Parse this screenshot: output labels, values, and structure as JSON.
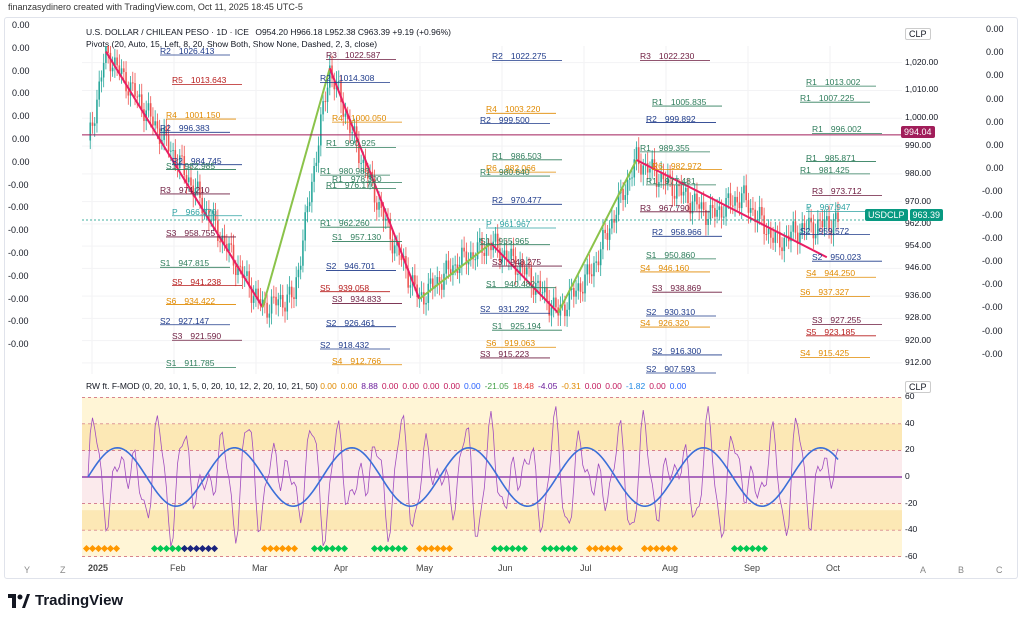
{
  "header": "finanzasydinero created with TradingView.com, Oct 11, 2025 18:45 UTC-5",
  "main": {
    "title": "U.S. DOLLAR / CHILEAN PESO · 1D · ICE",
    "ohlc": "O954.20 H966.18 L952.38 C963.39 +9.19 (+0.96%)",
    "currency": "CLP",
    "indicator": "Pivots (20, Auto, 15, Left, 8, 20, Show Both, Show None, Dashed, 2, 3, close)",
    "symbol_badge": "USDCLP",
    "last_price": "963.39",
    "marker_price": "994.04",
    "y_ticks": [
      "1,020.00",
      "1,010.00",
      "1,000.00",
      "990.00",
      "980.00",
      "970.00",
      "962.00",
      "954.00",
      "946.00",
      "936.00",
      "928.00",
      "920.00",
      "912.00"
    ],
    "colors": {
      "up": "#26a69a",
      "down": "#ef5350",
      "trend": "#e91e63",
      "up_trend": "#8bc34a",
      "badge": "#089981",
      "marker": "#a11e5a"
    }
  },
  "left_panel_values": [
    "0.00",
    "0.00",
    "0.00",
    "0.00",
    "0.00",
    "0.00",
    "0.00",
    "-0.00",
    "-0.00",
    "-0.00",
    "-0.00",
    "-0.00",
    "-0.00",
    "-0.00",
    "-0.00"
  ],
  "right_panel_values": [
    "0.00",
    "0.00",
    "0.00",
    "0.00",
    "0.00",
    "0.00",
    "0.00",
    "-0.00",
    "-0.00",
    "-0.00",
    "-0.00",
    "-0.00",
    "-0.00",
    "-0.00",
    "-0.00"
  ],
  "pivot_labels": [
    {
      "t": "R2",
      "c": "#1e3a8a"
    },
    {
      "t": "1026.413",
      "c": "#1e3a8a"
    },
    {
      "t": "R3",
      "c": "#6d1b3f"
    },
    {
      "t": "1022.587",
      "c": "#6d1b3f"
    },
    {
      "t": "R2",
      "c": "#1e3a8a"
    },
    {
      "t": "1022.275",
      "c": "#1e3a8a"
    },
    {
      "t": "R3",
      "c": "#6d1b3f"
    },
    {
      "t": "1022.230",
      "c": "#6d1b3f"
    },
    {
      "t": "R1",
      "c": "#2e7d5b"
    },
    {
      "t": "1013.002",
      "c": "#2e7d5b"
    },
    {
      "t": "R5",
      "c": "#b71c1c"
    },
    {
      "t": "1013.643",
      "c": "#b71c1c"
    },
    {
      "t": "R2",
      "c": "#1e3a8a"
    },
    {
      "t": "1014.308",
      "c": "#1e3a8a"
    },
    {
      "t": "R4",
      "c": "#e08a00"
    },
    {
      "t": "1003.220",
      "c": "#e08a00"
    },
    {
      "t": "R1",
      "c": "#2e7d5b"
    },
    {
      "t": "1005.835",
      "c": "#2e7d5b"
    },
    {
      "t": "R1",
      "c": "#2e7d5b"
    },
    {
      "t": "1007.225",
      "c": "#2e7d5b"
    },
    {
      "t": "R4",
      "c": "#e08a00"
    },
    {
      "t": "1001.150",
      "c": "#e08a00"
    },
    {
      "t": "R4",
      "c": "#e08a00"
    },
    {
      "t": "1000.050",
      "c": "#e08a00"
    },
    {
      "t": "R2",
      "c": "#1e3a8a"
    },
    {
      "t": "999.500",
      "c": "#1e3a8a"
    },
    {
      "t": "R2",
      "c": "#1e3a8a"
    },
    {
      "t": "999.892",
      "c": "#1e3a8a"
    },
    {
      "t": "R1",
      "c": "#2e7d5b"
    },
    {
      "t": "996.002",
      "c": "#2e7d5b"
    },
    {
      "t": "R2",
      "c": "#1e3a8a"
    },
    {
      "t": "996.383",
      "c": "#1e3a8a"
    },
    {
      "t": "R1",
      "c": "#2e7d5b"
    },
    {
      "t": "990.925",
      "c": "#2e7d5b"
    },
    {
      "t": "R1",
      "c": "#2e7d5b"
    },
    {
      "t": "986.503",
      "c": "#2e7d5b"
    },
    {
      "t": "R1",
      "c": "#2e7d5b"
    },
    {
      "t": "989.355",
      "c": "#2e7d5b"
    },
    {
      "t": "R1",
      "c": "#2e7d5b"
    },
    {
      "t": "985.871",
      "c": "#2e7d5b"
    },
    {
      "t": "R2",
      "c": "#1e3a8a"
    },
    {
      "t": "984.745",
      "c": "#1e3a8a"
    },
    {
      "t": "R1",
      "c": "#2e7d5b"
    },
    {
      "t": "980.983",
      "c": "#2e7d5b"
    },
    {
      "t": "R6",
      "c": "#e08a00"
    },
    {
      "t": "982.066",
      "c": "#e08a00"
    },
    {
      "t": "R6",
      "c": "#e08a00"
    },
    {
      "t": "982.972",
      "c": "#e08a00"
    },
    {
      "t": "R1",
      "c": "#2e7d5b"
    },
    {
      "t": "981.425",
      "c": "#2e7d5b"
    },
    {
      "t": "S1",
      "c": "#2e7d5b"
    },
    {
      "t": "982.985",
      "c": "#2e7d5b"
    },
    {
      "t": "R1",
      "c": "#2e7d5b"
    },
    {
      "t": "978.300",
      "c": "#2e7d5b"
    },
    {
      "t": "R1",
      "c": "#2e7d5b"
    },
    {
      "t": "980.640",
      "c": "#2e7d5b"
    },
    {
      "t": "R1",
      "c": "#2e7d5b"
    },
    {
      "t": "977.481",
      "c": "#2e7d5b"
    },
    {
      "t": "R3",
      "c": "#6d1b3f"
    },
    {
      "t": "973.712",
      "c": "#6d1b3f"
    },
    {
      "t": "R3",
      "c": "#6d1b3f"
    },
    {
      "t": "974.210",
      "c": "#6d1b3f"
    },
    {
      "t": "R1",
      "c": "#2e7d5b"
    },
    {
      "t": "976.170",
      "c": "#2e7d5b"
    },
    {
      "t": "R2",
      "c": "#1e3a8a"
    },
    {
      "t": "970.477",
      "c": "#1e3a8a"
    },
    {
      "t": "R3",
      "c": "#6d1b3f"
    },
    {
      "t": "967.790",
      "c": "#6d1b3f"
    },
    {
      "t": "P",
      "c": "#2ea2a2"
    },
    {
      "t": "967.947",
      "c": "#2ea2a2"
    },
    {
      "t": "P",
      "c": "#2ea2a2"
    },
    {
      "t": "966.370",
      "c": "#2ea2a2"
    },
    {
      "t": "R1",
      "c": "#2e7d5b"
    },
    {
      "t": "962.260",
      "c": "#2e7d5b"
    },
    {
      "t": "P",
      "c": "#2ea2a2"
    },
    {
      "t": "961.967",
      "c": "#2ea2a2"
    },
    {
      "t": "R2",
      "c": "#1e3a8a"
    },
    {
      "t": "958.966",
      "c": "#1e3a8a"
    },
    {
      "t": "S2",
      "c": "#1e3a8a"
    },
    {
      "t": "959.572",
      "c": "#1e3a8a"
    },
    {
      "t": "S3",
      "c": "#6d1b3f"
    },
    {
      "t": "958.755",
      "c": "#6d1b3f"
    },
    {
      "t": "S1",
      "c": "#2e7d5b"
    },
    {
      "t": "957.130",
      "c": "#2e7d5b"
    },
    {
      "t": "S1",
      "c": "#2e7d5b"
    },
    {
      "t": "955.965",
      "c": "#2e7d5b"
    },
    {
      "t": "S1",
      "c": "#2e7d5b"
    },
    {
      "t": "950.860",
      "c": "#2e7d5b"
    },
    {
      "t": "S2",
      "c": "#1e3a8a"
    },
    {
      "t": "950.023",
      "c": "#1e3a8a"
    },
    {
      "t": "S1",
      "c": "#2e7d5b"
    },
    {
      "t": "947.815",
      "c": "#2e7d5b"
    },
    {
      "t": "S2",
      "c": "#1e3a8a"
    },
    {
      "t": "946.701",
      "c": "#1e3a8a"
    },
    {
      "t": "S3",
      "c": "#6d1b3f"
    },
    {
      "t": "948.275",
      "c": "#6d1b3f"
    },
    {
      "t": "S4",
      "c": "#e08a00"
    },
    {
      "t": "946.160",
      "c": "#e08a00"
    },
    {
      "t": "S4",
      "c": "#e08a00"
    },
    {
      "t": "944.250",
      "c": "#e08a00"
    },
    {
      "t": "S5",
      "c": "#b71c1c"
    },
    {
      "t": "941.238",
      "c": "#b71c1c"
    },
    {
      "t": "S5",
      "c": "#b71c1c"
    },
    {
      "t": "939.058",
      "c": "#b71c1c"
    },
    {
      "t": "S1",
      "c": "#2e7d5b"
    },
    {
      "t": "940.482",
      "c": "#2e7d5b"
    },
    {
      "t": "S3",
      "c": "#6d1b3f"
    },
    {
      "t": "938.869",
      "c": "#6d1b3f"
    },
    {
      "t": "S6",
      "c": "#e08a00"
    },
    {
      "t": "937.327",
      "c": "#e08a00"
    },
    {
      "t": "S6",
      "c": "#e08a00"
    },
    {
      "t": "934.422",
      "c": "#e08a00"
    },
    {
      "t": "S3",
      "c": "#6d1b3f"
    },
    {
      "t": "934.833",
      "c": "#6d1b3f"
    },
    {
      "t": "S2",
      "c": "#1e3a8a"
    },
    {
      "t": "931.292",
      "c": "#1e3a8a"
    },
    {
      "t": "S2",
      "c": "#1e3a8a"
    },
    {
      "t": "930.310",
      "c": "#1e3a8a"
    },
    {
      "t": "S3",
      "c": "#6d1b3f"
    },
    {
      "t": "927.255",
      "c": "#6d1b3f"
    },
    {
      "t": "S2",
      "c": "#1e3a8a"
    },
    {
      "t": "927.147",
      "c": "#1e3a8a"
    },
    {
      "t": "S2",
      "c": "#1e3a8a"
    },
    {
      "t": "926.461",
      "c": "#1e3a8a"
    },
    {
      "t": "S1",
      "c": "#2e7d5b"
    },
    {
      "t": "925.194",
      "c": "#2e7d5b"
    },
    {
      "t": "S4",
      "c": "#e08a00"
    },
    {
      "t": "926.320",
      "c": "#e08a00"
    },
    {
      "t": "S5",
      "c": "#b71c1c"
    },
    {
      "t": "923.185",
      "c": "#b71c1c"
    },
    {
      "t": "S3",
      "c": "#6d1b3f"
    },
    {
      "t": "921.590",
      "c": "#6d1b3f"
    },
    {
      "t": "S2",
      "c": "#1e3a8a"
    },
    {
      "t": "918.432",
      "c": "#1e3a8a"
    },
    {
      "t": "S6",
      "c": "#e08a00"
    },
    {
      "t": "919.063",
      "c": "#e08a00"
    },
    {
      "t": "S2",
      "c": "#1e3a8a"
    },
    {
      "t": "916.300",
      "c": "#1e3a8a"
    },
    {
      "t": "S4",
      "c": "#e08a00"
    },
    {
      "t": "915.425",
      "c": "#e08a00"
    },
    {
      "t": "S1",
      "c": "#2e7d5b"
    },
    {
      "t": "911.785",
      "c": "#2e7d5b"
    },
    {
      "t": "S4",
      "c": "#e08a00"
    },
    {
      "t": "912.766",
      "c": "#e08a00"
    },
    {
      "t": "S3",
      "c": "#6d1b3f"
    },
    {
      "t": "915.223",
      "c": "#6d1b3f"
    },
    {
      "t": "S2",
      "c": "#1e3a8a"
    },
    {
      "t": "907.593",
      "c": "#1e3a8a"
    }
  ],
  "osc": {
    "title": "RW ft. F-MOD (0, 20, 10, 1, 5, 0, 20, 10, 12, 2, 20, 10, 21, 50)",
    "values": [
      {
        "t": "0.00",
        "c": "#e08a00"
      },
      {
        "t": "0.00",
        "c": "#e08a00"
      },
      {
        "t": "8.88",
        "c": "#6a1b9a"
      },
      {
        "t": "0.00",
        "c": "#c2185b"
      },
      {
        "t": "0.00",
        "c": "#c2185b"
      },
      {
        "t": "0.00",
        "c": "#c2185b"
      },
      {
        "t": "0.00",
        "c": "#c2185b"
      },
      {
        "t": "0.00",
        "c": "#2962ff"
      },
      {
        "t": "-21.05",
        "c": "#43a047"
      },
      {
        "t": "18.48",
        "c": "#e53935"
      },
      {
        "t": "-4.05",
        "c": "#6a1b9a"
      },
      {
        "t": "-0.31",
        "c": "#e08a00"
      },
      {
        "t": "0.00",
        "c": "#c2185b"
      },
      {
        "t": "0.00",
        "c": "#c2185b"
      },
      {
        "t": "-1.82",
        "c": "#1e88e5"
      },
      {
        "t": "0.00",
        "c": "#c2185b"
      },
      {
        "t": "0.00",
        "c": "#2962ff"
      }
    ],
    "currency": "CLP",
    "y_ticks": [
      "60",
      "40",
      "20",
      "0",
      "-20",
      "-40",
      "-60"
    ]
  },
  "x_labels": [
    "2025",
    "Feb",
    "Mar",
    "Apr",
    "May",
    "Jun",
    "Jul",
    "Aug",
    "Sep",
    "Oct"
  ],
  "axis_buttons": [
    "Y",
    "Z",
    "A",
    "B",
    "C"
  ],
  "brand": "TradingView",
  "chart_data": {
    "type": "line",
    "title": "U.S. DOLLAR / CHILEAN PESO · 1D · ICE",
    "x": [
      "2025-01",
      "2025-02",
      "2025-03",
      "2025-04",
      "2025-05",
      "2025-06",
      "2025-07",
      "2025-08",
      "2025-09",
      "2025-10"
    ],
    "series": [
      {
        "name": "USDCLP",
        "values": [
          998,
          980,
          940,
          1000,
          942,
          952,
          932,
          972,
          960,
          963.39
        ]
      }
    ],
    "ylim": [
      908,
      1026
    ],
    "ylabel": "CLP",
    "last": 963.39
  }
}
